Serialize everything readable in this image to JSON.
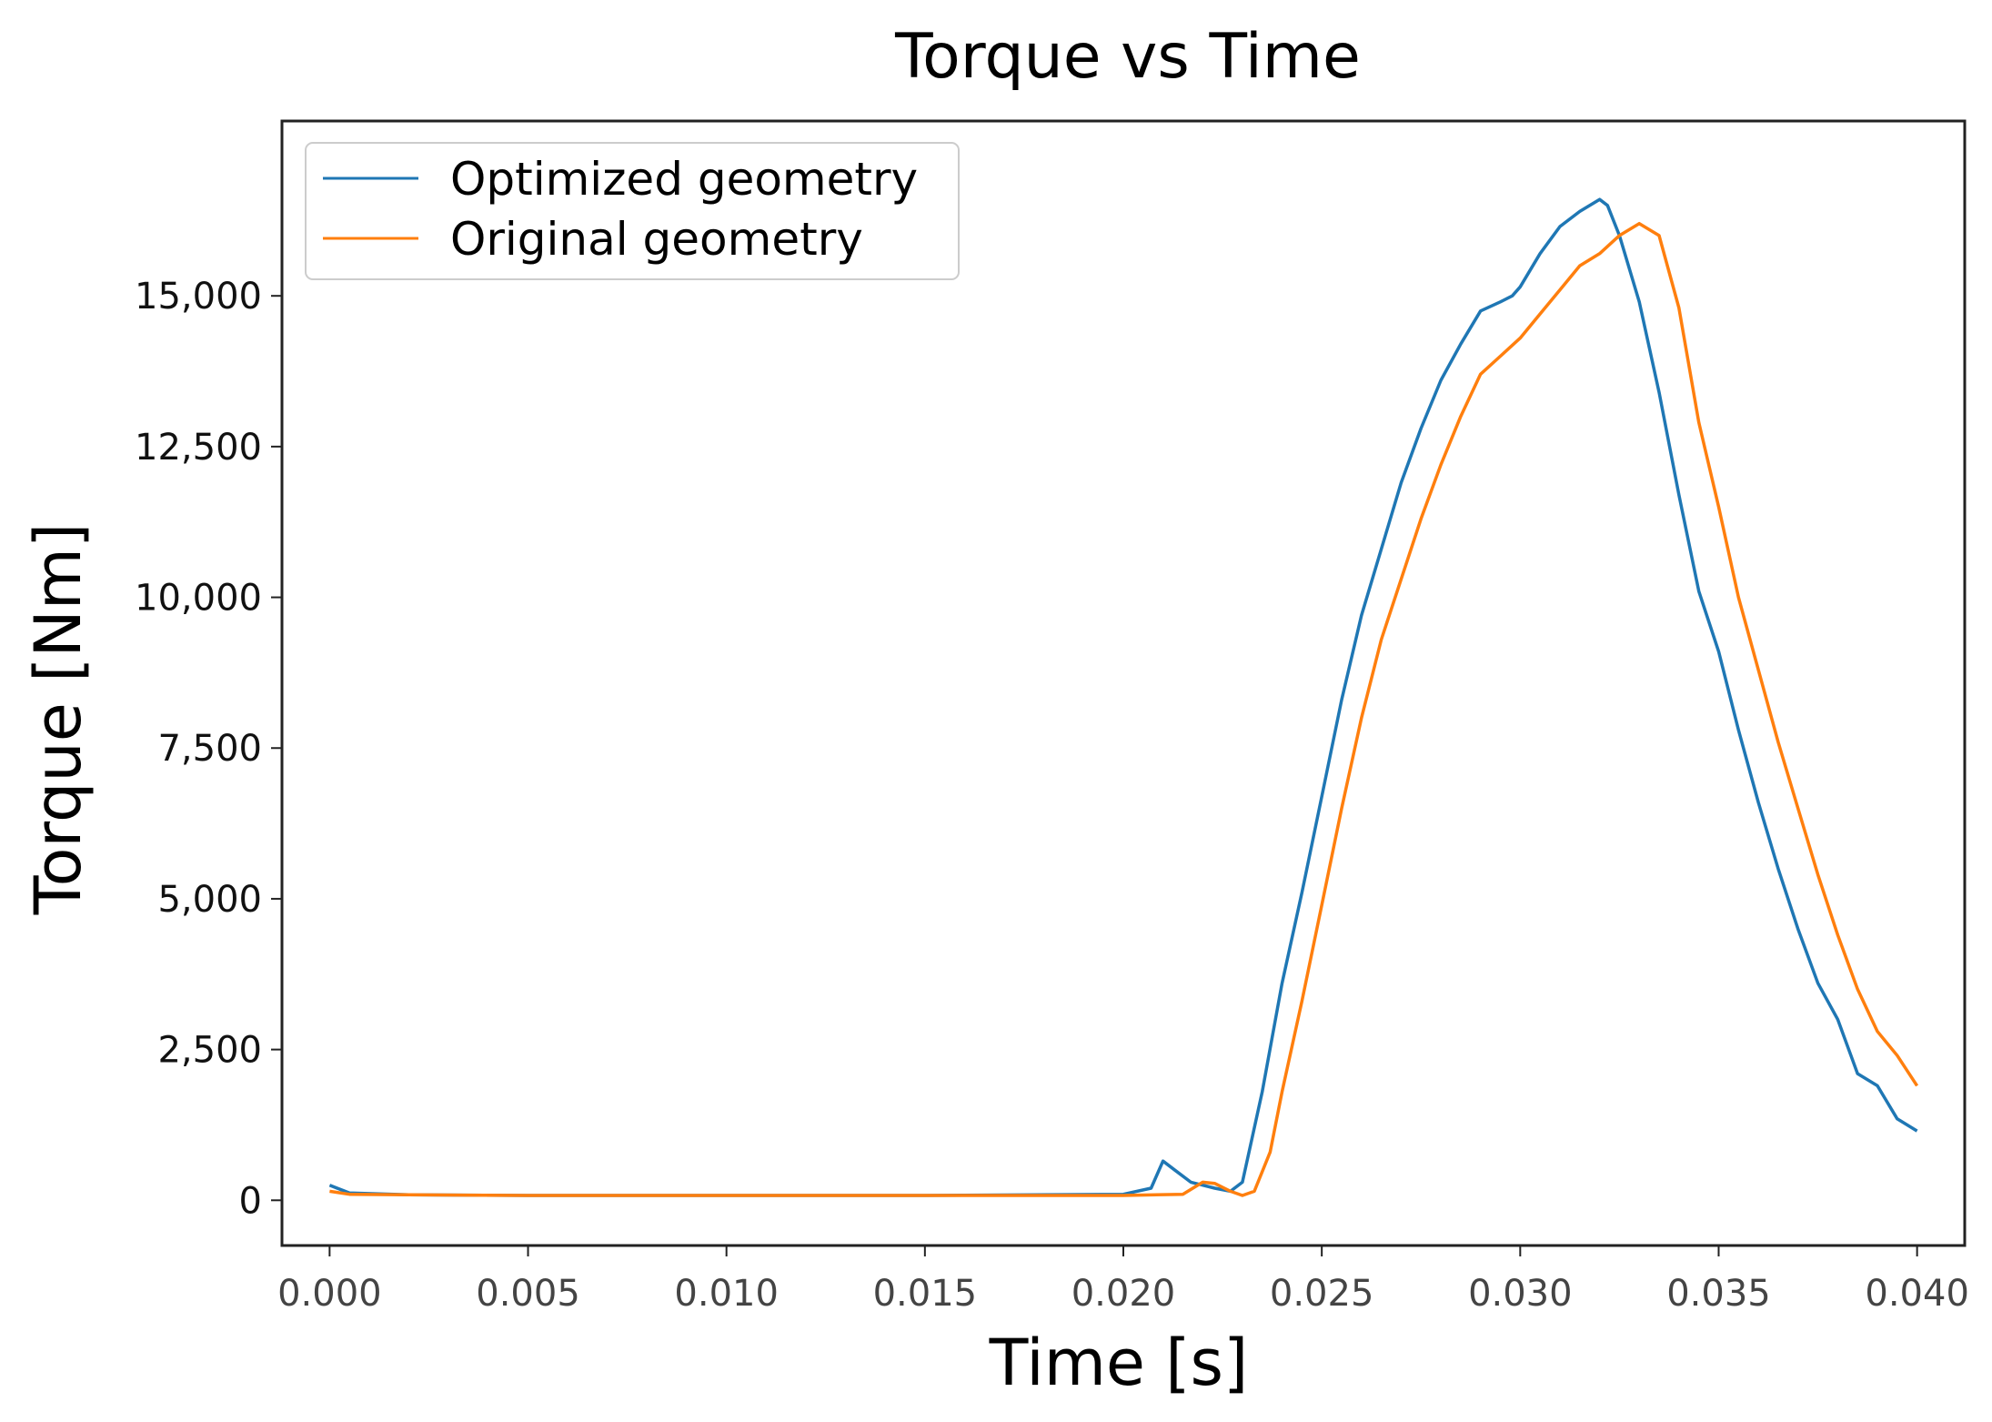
{
  "chart_data": {
    "type": "line",
    "title": "Torque vs Time",
    "xlabel": "Time [s]",
    "ylabel": "Torque [Nm]",
    "xlim": [
      -0.0012,
      0.0412
    ],
    "ylim": [
      -750,
      17900
    ],
    "xticks": [
      0.0,
      0.005,
      0.01,
      0.015,
      0.02,
      0.025,
      0.03,
      0.035,
      0.04
    ],
    "xtick_labels": [
      "0.000",
      "0.005",
      "0.010",
      "0.015",
      "0.020",
      "0.025",
      "0.030",
      "0.035",
      "0.040"
    ],
    "yticks": [
      0,
      2500,
      5000,
      7500,
      10000,
      12500,
      15000
    ],
    "ytick_labels": [
      "0",
      "2,500",
      "5,000",
      "7,500",
      "10,000",
      "12,500",
      "15,000"
    ],
    "grid": false,
    "legend_position": "top-left",
    "series": [
      {
        "name": "Optimized geometry",
        "color": "#1f77b4",
        "x": [
          0.0,
          0.0005,
          0.002,
          0.005,
          0.01,
          0.015,
          0.02,
          0.0207,
          0.021,
          0.0213,
          0.0217,
          0.022,
          0.0223,
          0.0227,
          0.023,
          0.0235,
          0.024,
          0.0245,
          0.025,
          0.0255,
          0.026,
          0.0265,
          0.027,
          0.0275,
          0.028,
          0.0285,
          0.029,
          0.0295,
          0.0298,
          0.03,
          0.0305,
          0.031,
          0.0315,
          0.032,
          0.0322,
          0.0325,
          0.033,
          0.0335,
          0.034,
          0.0345,
          0.035,
          0.0355,
          0.036,
          0.0365,
          0.037,
          0.0375,
          0.038,
          0.0385,
          0.039,
          0.0395,
          0.04
        ],
        "y": [
          250,
          120,
          90,
          80,
          80,
          80,
          100,
          200,
          650,
          500,
          300,
          250,
          200,
          150,
          300,
          1800,
          3600,
          5100,
          6700,
          8300,
          9700,
          10800,
          11900,
          12800,
          13600,
          14200,
          14750,
          14900,
          15000,
          15150,
          15700,
          16150,
          16400,
          16600,
          16500,
          16000,
          14900,
          13400,
          11700,
          10100,
          9100,
          7800,
          6600,
          5500,
          4500,
          3600,
          3000,
          2100,
          1900,
          1350,
          1150
        ]
      },
      {
        "name": "Original geometry",
        "color": "#ff7f0e",
        "x": [
          0.0,
          0.0005,
          0.002,
          0.005,
          0.01,
          0.015,
          0.02,
          0.0215,
          0.022,
          0.0223,
          0.0227,
          0.023,
          0.0233,
          0.0237,
          0.024,
          0.0245,
          0.025,
          0.0255,
          0.026,
          0.0265,
          0.027,
          0.0275,
          0.028,
          0.0285,
          0.029,
          0.0295,
          0.03,
          0.0305,
          0.031,
          0.0315,
          0.032,
          0.0325,
          0.033,
          0.0335,
          0.034,
          0.0345,
          0.035,
          0.0355,
          0.036,
          0.0365,
          0.037,
          0.0375,
          0.038,
          0.0385,
          0.039,
          0.0395,
          0.04
        ],
        "y": [
          150,
          100,
          90,
          80,
          80,
          80,
          80,
          100,
          300,
          280,
          150,
          80,
          150,
          800,
          1800,
          3300,
          4900,
          6500,
          8000,
          9300,
          10300,
          11300,
          12200,
          13000,
          13700,
          14000,
          14300,
          14700,
          15100,
          15500,
          15700,
          16000,
          16200,
          16000,
          14800,
          12900,
          11500,
          10000,
          8800,
          7600,
          6500,
          5400,
          4400,
          3500,
          2800,
          2400,
          1900
        ]
      }
    ]
  }
}
